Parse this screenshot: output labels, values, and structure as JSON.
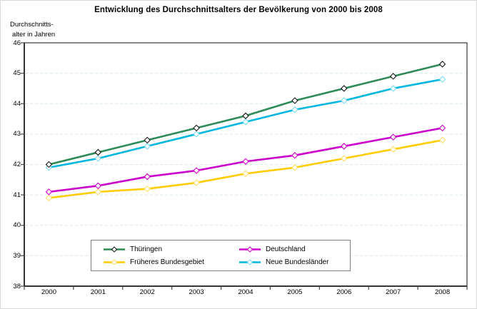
{
  "title": "Entwicklung des Durchschnittsalters der Bevölkerung von 2000 bis 2008",
  "y_axis": {
    "line1": "Durchschnitts-",
    "line2": "alter in Jahren"
  },
  "chart_data": {
    "type": "line",
    "title": "Entwicklung des Durchschnittsalters der Bevölkerung von 2000 bis 2008",
    "ylabel": "Durchschnittsalter in Jahren",
    "categories": [
      "2000",
      "2001",
      "2002",
      "2003",
      "2004",
      "2005",
      "2006",
      "2007",
      "2008"
    ],
    "ylim": [
      38,
      46
    ],
    "yticks": [
      38,
      39,
      40,
      41,
      42,
      43,
      44,
      45,
      46
    ],
    "grid": "horizontal-dashed",
    "legend_position": "bottom-inside",
    "series": [
      {
        "name": "Thüringen",
        "color": "#2E8B57",
        "marker_outline": "#1a1a1a",
        "values": [
          42.0,
          42.4,
          42.8,
          43.2,
          43.6,
          44.1,
          44.5,
          44.9,
          45.3
        ]
      },
      {
        "name": "Deutschland",
        "color": "#CC00CC",
        "marker_outline": "#CC00CC",
        "values": [
          41.1,
          41.3,
          41.6,
          41.8,
          42.1,
          42.3,
          42.6,
          42.9,
          43.2
        ]
      },
      {
        "name": "Früheres Bundesgebiet",
        "color": "#FFCC00",
        "marker_outline": "#FFDE66",
        "values": [
          40.9,
          41.1,
          41.2,
          41.4,
          41.7,
          41.9,
          42.2,
          42.5,
          42.8
        ]
      },
      {
        "name": "Neue Bundesländer",
        "color": "#00B7DF",
        "marker_outline": "#7ADEF2",
        "values": [
          41.9,
          42.2,
          42.6,
          43.0,
          43.4,
          43.8,
          44.1,
          44.5,
          44.8
        ]
      }
    ]
  },
  "colors": {
    "background": "#FFFFFF",
    "grid": "#D7ECEA",
    "axis": "#454545",
    "legend_border": "#808080"
  }
}
